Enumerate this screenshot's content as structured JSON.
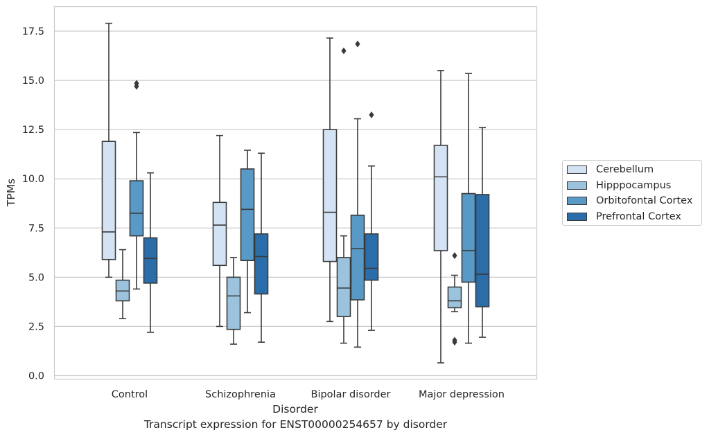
{
  "chart_data": {
    "type": "boxplot",
    "caption": "Transcript expression for ENST00000254657 by disorder",
    "xlabel": "Disorder",
    "ylabel": "TPMs",
    "ylim": [
      -0.2,
      18.7
    ],
    "yticks": [
      0.0,
      2.5,
      5.0,
      7.5,
      10.0,
      12.5,
      15.0,
      17.5
    ],
    "ytick_labels": [
      "0.0",
      "2.5",
      "5.0",
      "7.5",
      "10.0",
      "12.5",
      "15.0",
      "17.5"
    ],
    "grid": true,
    "legend_position": "right",
    "categories": [
      "Control",
      "Schizophrenia",
      "Bipolar disorder",
      "Major depression"
    ],
    "series": [
      {
        "name": "Cerebellum",
        "color": "#d4e3f3",
        "boxes": [
          {
            "whislo": 5.0,
            "q1": 5.9,
            "med": 7.3,
            "q3": 11.9,
            "whishi": 17.9,
            "fliers": []
          },
          {
            "whislo": 2.5,
            "q1": 5.6,
            "med": 7.65,
            "q3": 8.8,
            "whishi": 12.2,
            "fliers": []
          },
          {
            "whislo": 2.75,
            "q1": 5.8,
            "med": 8.3,
            "q3": 12.5,
            "whishi": 17.15,
            "fliers": []
          },
          {
            "whislo": 0.65,
            "q1": 6.35,
            "med": 10.1,
            "q3": 11.7,
            "whishi": 15.5,
            "fliers": []
          }
        ]
      },
      {
        "name": "Hipppocampus",
        "color": "#9bc3de",
        "boxes": [
          {
            "whislo": 2.9,
            "q1": 3.8,
            "med": 4.3,
            "q3": 4.85,
            "whishi": 6.4,
            "fliers": []
          },
          {
            "whislo": 1.6,
            "q1": 2.35,
            "med": 4.05,
            "q3": 5.0,
            "whishi": 6.0,
            "fliers": []
          },
          {
            "whislo": 1.65,
            "q1": 3.0,
            "med": 4.45,
            "q3": 6.0,
            "whishi": 7.1,
            "fliers": [
              16.5
            ]
          },
          {
            "whislo": 3.25,
            "q1": 3.45,
            "med": 3.8,
            "q3": 4.5,
            "whishi": 5.1,
            "fliers": [
              6.1,
              1.8,
              1.7
            ]
          }
        ]
      },
      {
        "name": "Orbitofontal Cortex",
        "color": "#5899c6",
        "boxes": [
          {
            "whislo": 4.4,
            "q1": 7.1,
            "med": 8.25,
            "q3": 9.9,
            "whishi": 12.35,
            "fliers": [
              14.85,
              14.7
            ]
          },
          {
            "whislo": 3.2,
            "q1": 5.85,
            "med": 8.45,
            "q3": 10.5,
            "whishi": 11.45,
            "fliers": []
          },
          {
            "whislo": 1.45,
            "q1": 3.85,
            "med": 6.45,
            "q3": 8.15,
            "whishi": 13.05,
            "fliers": [
              16.85
            ]
          },
          {
            "whislo": 1.65,
            "q1": 4.75,
            "med": 6.35,
            "q3": 9.25,
            "whishi": 15.35,
            "fliers": []
          }
        ]
      },
      {
        "name": "Prefrontal Cortex",
        "color": "#2b6da9",
        "boxes": [
          {
            "whislo": 2.2,
            "q1": 4.7,
            "med": 5.95,
            "q3": 7.0,
            "whishi": 10.3,
            "fliers": []
          },
          {
            "whislo": 1.7,
            "q1": 4.15,
            "med": 6.05,
            "q3": 7.2,
            "whishi": 11.3,
            "fliers": []
          },
          {
            "whislo": 2.3,
            "q1": 4.85,
            "med": 5.45,
            "q3": 7.2,
            "whishi": 10.65,
            "fliers": [
              13.25
            ]
          },
          {
            "whislo": 1.95,
            "q1": 3.5,
            "med": 5.15,
            "q3": 9.2,
            "whishi": 12.6,
            "fliers": []
          }
        ]
      }
    ]
  },
  "style": {
    "grid_color": "#cccccc",
    "line_color": "#3a3a3a",
    "spine_color": "#cccccc"
  }
}
